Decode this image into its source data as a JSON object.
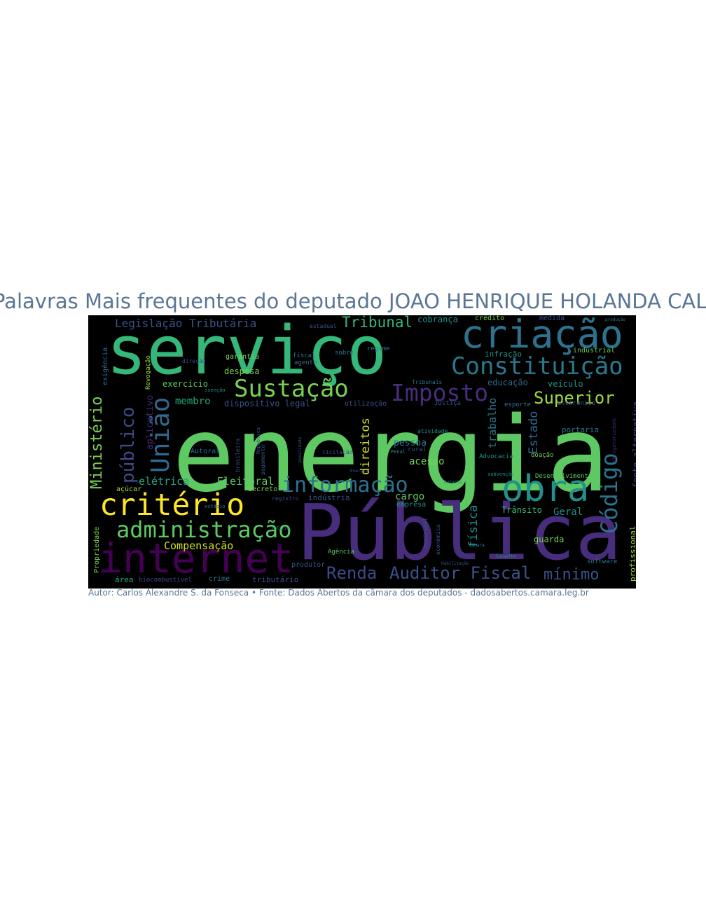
{
  "title": "Palavras Mais frequentes do deputado JOAO HENRIQUE HOLANDA  CALDAS",
  "caption": "Autor: Carlos Alexandre S. da Fonseca • Fonte: Dados Abertos da câmara dos deputados - dadosabertos.camara.leg.br",
  "wordcloud": {
    "background": "#000000",
    "palette": [
      "#440154",
      "#3b528b",
      "#21918c",
      "#5ec962",
      "#fde725"
    ],
    "words": [
      {
        "text": "energia",
        "color": "#5ec962"
      },
      {
        "text": "Pública",
        "color": "#472d7b"
      },
      {
        "text": "serviço",
        "color": "#35b779"
      },
      {
        "text": "criação",
        "color": "#2c728e"
      },
      {
        "text": "internet",
        "color": "#440154"
      },
      {
        "text": "Constituição",
        "color": "#2a788e"
      },
      {
        "text": "critério",
        "color": "#fde725"
      },
      {
        "text": "administração",
        "color": "#5ec962"
      },
      {
        "text": "obra",
        "color": "#21918c"
      },
      {
        "text": "Sustação",
        "color": "#7ad151"
      },
      {
        "text": "informação",
        "color": "#2c728e"
      },
      {
        "text": "Imposto",
        "color": "#472d7b"
      },
      {
        "text": "União",
        "color": "#31688e"
      },
      {
        "text": "público",
        "color": "#3e4a89"
      },
      {
        "text": "Ministério",
        "color": "#7ad151"
      },
      {
        "text": "Superior",
        "color": "#a0da39"
      },
      {
        "text": "Código",
        "color": "#2c728e"
      },
      {
        "text": "Legislação Tributária",
        "color": "#3b528b"
      },
      {
        "text": "Tribunal",
        "color": "#35b779"
      },
      {
        "text": "Auditor Fiscal",
        "color": "#3b528b"
      },
      {
        "text": "Renda",
        "color": "#3e4a89"
      },
      {
        "text": "mínimo",
        "color": "#3b528b"
      },
      {
        "text": "direitos",
        "color": "#d0e11c"
      },
      {
        "text": "trabalho",
        "color": "#2a788e"
      },
      {
        "text": "Estado",
        "color": "#31688e"
      },
      {
        "text": "física",
        "color": "#21918c"
      },
      {
        "text": "elétrica",
        "color": "#22a884"
      },
      {
        "text": "Eleitoral",
        "color": "#5ec962"
      },
      {
        "text": "Compensação",
        "color": "#d0e11c"
      },
      {
        "text": "membro",
        "color": "#22a884"
      },
      {
        "text": "dispositivo legal",
        "color": "#3b528b"
      },
      {
        "text": "exercício",
        "color": "#5ec962"
      },
      {
        "text": "despesa",
        "color": "#7ad151"
      },
      {
        "text": "garantia",
        "color": "#7ad151"
      },
      {
        "text": "cobrança",
        "color": "#21918c"
      },
      {
        "text": "educação",
        "color": "#31688e"
      },
      {
        "text": "veículo",
        "color": "#21918c"
      },
      {
        "text": "acesso",
        "color": "#7ad151"
      },
      {
        "text": "pessoa",
        "color": "#2a788e"
      },
      {
        "text": "cargo",
        "color": "#5ec962"
      },
      {
        "text": "indústria",
        "color": "#3b528b"
      },
      {
        "text": "empresa",
        "color": "#21918c"
      },
      {
        "text": "Geral",
        "color": "#21918c"
      },
      {
        "text": "Trânsito",
        "color": "#35b779"
      },
      {
        "text": "guarda",
        "color": "#7ad151"
      },
      {
        "text": "portaria",
        "color": "#2a788e"
      },
      {
        "text": "fonte alternativa",
        "color": "#3e4a89"
      },
      {
        "text": "profissional",
        "color": "#a0da39"
      },
      {
        "text": "Propriedade",
        "color": "#7ad151"
      },
      {
        "text": "aplicativo",
        "color": "#482878"
      },
      {
        "text": "Autoral",
        "color": "#2c728e"
      },
      {
        "text": "crédito",
        "color": "#7ad151"
      },
      {
        "text": "medida",
        "color": "#3b528b"
      },
      {
        "text": "infração",
        "color": "#21918c"
      },
      {
        "text": "área",
        "color": "#22a884"
      },
      {
        "text": "biocombustível",
        "color": "#3e4a89"
      },
      {
        "text": "crime",
        "color": "#2a788e"
      },
      {
        "text": "tributário",
        "color": "#3b528b"
      },
      {
        "text": "produtor",
        "color": "#3b528b"
      },
      {
        "text": "açúcar",
        "color": "#a0da39"
      },
      {
        "text": "decreto",
        "color": "#7ad151"
      },
      {
        "text": "Agência",
        "color": "#5ec962"
      },
      {
        "text": "Advocacia",
        "color": "#21918c"
      },
      {
        "text": "doação",
        "color": "#7ad151"
      },
      {
        "text": "Desenvolvimento",
        "color": "#5ec962"
      },
      {
        "text": "software",
        "color": "#2a788e"
      },
      {
        "text": "Revogação",
        "color": "#a0da39"
      },
      {
        "text": "exigência",
        "color": "#31688e"
      },
      {
        "text": "utilização",
        "color": "#3e4a89"
      },
      {
        "text": "Justiça",
        "color": "#3b528b"
      },
      {
        "text": "eletrônico",
        "color": "#3b528b"
      },
      {
        "text": "esporte",
        "color": "#2a788e"
      },
      {
        "text": "regime",
        "color": "#2a788e"
      },
      {
        "text": "sobre",
        "color": "#2a788e"
      },
      {
        "text": "fiscal",
        "color": "#2a788e"
      },
      {
        "text": "agente",
        "color": "#2c728e"
      },
      {
        "text": "estadual",
        "color": "#3b528b"
      },
      {
        "text": "industrial",
        "color": "#5ec962"
      },
      {
        "text": "Tribunais",
        "color": "#2c728e"
      },
      {
        "text": "registro",
        "color": "#3e4a89"
      },
      {
        "text": "licitação",
        "color": "#3b528b"
      },
      {
        "text": "brasileira",
        "color": "#3b528b"
      },
      {
        "text": "pagamento",
        "color": "#3b528b"
      },
      {
        "text": "econômica",
        "color": "#3b528b"
      },
      {
        "text": "municipal",
        "color": "#3b528b"
      },
      {
        "text": "direção",
        "color": "#3e4a89"
      },
      {
        "text": "atividade",
        "color": "#21918c"
      },
      {
        "text": "isenção",
        "color": "#21918c"
      },
      {
        "text": "subvenção",
        "color": "#21918c"
      },
      {
        "text": "estágio",
        "color": "#2c728e"
      },
      {
        "text": "Republica",
        "color": "#3b528b"
      },
      {
        "text": "Penal",
        "color": "#21918c"
      },
      {
        "text": "rural",
        "color": "#3b528b"
      },
      {
        "text": "Autoria",
        "color": "#21918c"
      },
      {
        "text": "penalidade",
        "color": "#3b528b"
      },
      {
        "text": "Polícia",
        "color": "#21918c"
      },
      {
        "text": "Energia",
        "color": "#3b528b"
      },
      {
        "text": "obrigatoriedade",
        "color": "#482878"
      },
      {
        "text": "produção",
        "color": "#2a788e"
      },
      {
        "text": "Habilitação",
        "color": "#3b528b"
      },
      {
        "text": "Câmara",
        "color": "#21918c"
      },
      {
        "text": "Conselho",
        "color": "#21918c"
      }
    ]
  }
}
